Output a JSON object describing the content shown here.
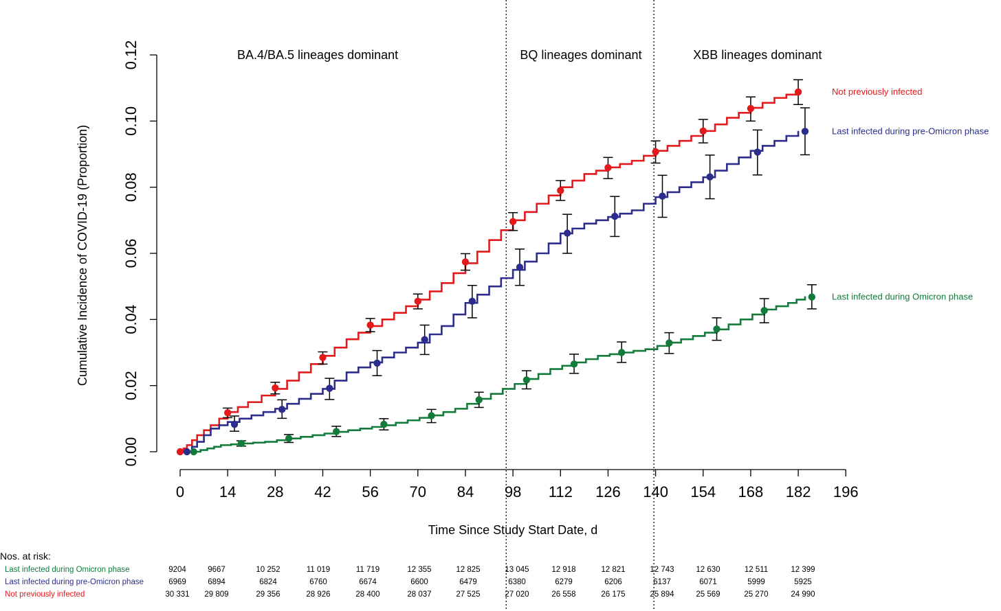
{
  "chart_data": {
    "type": "line",
    "ylabel": "Cumulative Incidence of COVID-19 (Proportion)",
    "xlabel": "Time Since Study Start Date, d",
    "xlim": [
      0,
      196
    ],
    "ylim": [
      0,
      0.12
    ],
    "x_ticks": [
      0,
      14,
      28,
      42,
      56,
      70,
      84,
      98,
      112,
      126,
      140,
      154,
      168,
      182,
      196
    ],
    "y_ticks": [
      "0.00",
      "0.02",
      "0.04",
      "0.06",
      "0.08",
      "0.10",
      "0.12"
    ],
    "phase_boundaries": [
      96,
      139.5
    ],
    "phases": [
      {
        "label": "BA.4/BA.5 lineages dominant",
        "x_center": 40.5
      },
      {
        "label": "BQ lineages dominant",
        "x_center": 118
      },
      {
        "label": "XBB lineages dominant",
        "x_center": 170
      }
    ],
    "series": [
      {
        "name": "Not previously infected",
        "color": "#e31a1c",
        "curve": [
          [
            0,
            0
          ],
          [
            2,
            0.002
          ],
          [
            5,
            0.005
          ],
          [
            9,
            0.008
          ],
          [
            14,
            0.012
          ],
          [
            20,
            0.015
          ],
          [
            28,
            0.019
          ],
          [
            35,
            0.024
          ],
          [
            42,
            0.029
          ],
          [
            49,
            0.034
          ],
          [
            56,
            0.038
          ],
          [
            63,
            0.042
          ],
          [
            70,
            0.046
          ],
          [
            77,
            0.051
          ],
          [
            84,
            0.057
          ],
          [
            91,
            0.064
          ],
          [
            98,
            0.07
          ],
          [
            105,
            0.075
          ],
          [
            112,
            0.08
          ],
          [
            119,
            0.084
          ],
          [
            126,
            0.086
          ],
          [
            133,
            0.088
          ],
          [
            140,
            0.091
          ],
          [
            147,
            0.094
          ],
          [
            154,
            0.097
          ],
          [
            161,
            0.101
          ],
          [
            168,
            0.104
          ],
          [
            175,
            0.107
          ],
          [
            182,
            0.109
          ]
        ],
        "points": [
          {
            "x": 0,
            "y": 0,
            "lo": 0,
            "hi": 0
          },
          {
            "x": 14,
            "y": 0.0118,
            "lo": 0.0103,
            "hi": 0.0132
          },
          {
            "x": 28,
            "y": 0.0193,
            "lo": 0.0175,
            "hi": 0.021
          },
          {
            "x": 42,
            "y": 0.0285,
            "lo": 0.0265,
            "hi": 0.0302
          },
          {
            "x": 56,
            "y": 0.0383,
            "lo": 0.0363,
            "hi": 0.0403
          },
          {
            "x": 70,
            "y": 0.0455,
            "lo": 0.0432,
            "hi": 0.0477
          },
          {
            "x": 84,
            "y": 0.0574,
            "lo": 0.0549,
            "hi": 0.0599
          },
          {
            "x": 98,
            "y": 0.0696,
            "lo": 0.0669,
            "hi": 0.0723
          },
          {
            "x": 112,
            "y": 0.079,
            "lo": 0.076,
            "hi": 0.082
          },
          {
            "x": 126,
            "y": 0.0859,
            "lo": 0.0826,
            "hi": 0.089
          },
          {
            "x": 140,
            "y": 0.0907,
            "lo": 0.0873,
            "hi": 0.094
          },
          {
            "x": 154,
            "y": 0.097,
            "lo": 0.0934,
            "hi": 0.1005
          },
          {
            "x": 168,
            "y": 0.1038,
            "lo": 0.1,
            "hi": 0.1073
          },
          {
            "x": 182,
            "y": 0.1088,
            "lo": 0.105,
            "hi": 0.1125
          }
        ]
      },
      {
        "name": "Last infected during pre-Omicron phase",
        "color": "#2b2c8c",
        "curve": [
          [
            2,
            0
          ],
          [
            5,
            0.003
          ],
          [
            9,
            0.007
          ],
          [
            14,
            0.009
          ],
          [
            21,
            0.011
          ],
          [
            28,
            0.013
          ],
          [
            35,
            0.016
          ],
          [
            42,
            0.019
          ],
          [
            49,
            0.024
          ],
          [
            56,
            0.027
          ],
          [
            63,
            0.03
          ],
          [
            70,
            0.033
          ],
          [
            77,
            0.038
          ],
          [
            84,
            0.045
          ],
          [
            91,
            0.05
          ],
          [
            98,
            0.055
          ],
          [
            105,
            0.06
          ],
          [
            112,
            0.066
          ],
          [
            119,
            0.069
          ],
          [
            126,
            0.071
          ],
          [
            133,
            0.073
          ],
          [
            140,
            0.077
          ],
          [
            147,
            0.08
          ],
          [
            154,
            0.083
          ],
          [
            161,
            0.087
          ],
          [
            168,
            0.091
          ],
          [
            175,
            0.094
          ],
          [
            182,
            0.097
          ]
        ],
        "points": [
          {
            "x": 2,
            "y": 0,
            "lo": 0,
            "hi": 0
          },
          {
            "x": 16,
            "y": 0.0083,
            "lo": 0.0062,
            "hi": 0.0108
          },
          {
            "x": 30,
            "y": 0.0128,
            "lo": 0.0101,
            "hi": 0.0157
          },
          {
            "x": 44,
            "y": 0.0192,
            "lo": 0.0158,
            "hi": 0.0222
          },
          {
            "x": 58,
            "y": 0.0268,
            "lo": 0.023,
            "hi": 0.0306
          },
          {
            "x": 72,
            "y": 0.0339,
            "lo": 0.0294,
            "hi": 0.0383
          },
          {
            "x": 86,
            "y": 0.0455,
            "lo": 0.0405,
            "hi": 0.0503
          },
          {
            "x": 100,
            "y": 0.0558,
            "lo": 0.0503,
            "hi": 0.0613
          },
          {
            "x": 114,
            "y": 0.0661,
            "lo": 0.06,
            "hi": 0.0718
          },
          {
            "x": 128,
            "y": 0.0712,
            "lo": 0.0651,
            "hi": 0.0772
          },
          {
            "x": 142,
            "y": 0.0773,
            "lo": 0.0709,
            "hi": 0.0836
          },
          {
            "x": 156,
            "y": 0.0831,
            "lo": 0.0765,
            "hi": 0.0897
          },
          {
            "x": 170,
            "y": 0.0906,
            "lo": 0.0837,
            "hi": 0.0973
          },
          {
            "x": 184,
            "y": 0.0969,
            "lo": 0.0898,
            "hi": 0.104
          }
        ]
      },
      {
        "name": "Last infected during Omicron phase",
        "color": "#127a3a",
        "curve": [
          [
            4,
            0
          ],
          [
            8,
            0.001
          ],
          [
            12,
            0.002
          ],
          [
            18,
            0.0025
          ],
          [
            25,
            0.003
          ],
          [
            32,
            0.004
          ],
          [
            39,
            0.005
          ],
          [
            46,
            0.006
          ],
          [
            53,
            0.007
          ],
          [
            60,
            0.008
          ],
          [
            67,
            0.0095
          ],
          [
            74,
            0.011
          ],
          [
            81,
            0.013
          ],
          [
            88,
            0.016
          ],
          [
            95,
            0.019
          ],
          [
            102,
            0.022
          ],
          [
            109,
            0.025
          ],
          [
            116,
            0.027
          ],
          [
            123,
            0.029
          ],
          [
            130,
            0.03
          ],
          [
            137,
            0.031
          ],
          [
            144,
            0.033
          ],
          [
            151,
            0.035
          ],
          [
            158,
            0.037
          ],
          [
            165,
            0.04
          ],
          [
            172,
            0.043
          ],
          [
            179,
            0.045
          ],
          [
            184,
            0.047
          ]
        ],
        "points": [
          {
            "x": 4,
            "y": 0,
            "lo": 0,
            "hi": 0
          },
          {
            "x": 18,
            "y": 0.0025,
            "lo": 0.0017,
            "hi": 0.0033
          },
          {
            "x": 32,
            "y": 0.004,
            "lo": 0.0028,
            "hi": 0.0052
          },
          {
            "x": 46,
            "y": 0.0061,
            "lo": 0.0046,
            "hi": 0.0077
          },
          {
            "x": 60,
            "y": 0.0083,
            "lo": 0.0066,
            "hi": 0.01
          },
          {
            "x": 74,
            "y": 0.0109,
            "lo": 0.0088,
            "hi": 0.0128
          },
          {
            "x": 88,
            "y": 0.0157,
            "lo": 0.0134,
            "hi": 0.018
          },
          {
            "x": 102,
            "y": 0.0217,
            "lo": 0.019,
            "hi": 0.0245
          },
          {
            "x": 116,
            "y": 0.0265,
            "lo": 0.0237,
            "hi": 0.0295
          },
          {
            "x": 130,
            "y": 0.03,
            "lo": 0.027,
            "hi": 0.0332
          },
          {
            "x": 144,
            "y": 0.0329,
            "lo": 0.0297,
            "hi": 0.036
          },
          {
            "x": 158,
            "y": 0.0371,
            "lo": 0.0337,
            "hi": 0.0405
          },
          {
            "x": 172,
            "y": 0.0427,
            "lo": 0.039,
            "hi": 0.0463
          },
          {
            "x": 186,
            "y": 0.0468,
            "lo": 0.0432,
            "hi": 0.0505
          }
        ]
      }
    ]
  },
  "risk_table": {
    "title": "Nos. at risk:",
    "rows": [
      {
        "label": "Last infected during Omicron phase",
        "color": "#127a3a",
        "values": [
          "9204",
          "9667",
          "10 252",
          "11 019",
          "11 719",
          "12 355",
          "12 825",
          "13 045",
          "12 918",
          "12 821",
          "12 743",
          "12 630",
          "12 511",
          "12 399"
        ]
      },
      {
        "label": "Last infected during pre-Omicron phase",
        "color": "#2b2c8c",
        "values": [
          "6969",
          "6894",
          "6824",
          "6760",
          "6674",
          "6600",
          "6479",
          "6380",
          "6279",
          "6206",
          "6137",
          "6071",
          "5999",
          "5925"
        ]
      },
      {
        "label": "Not previously infected",
        "color": "#e31a1c",
        "values": [
          "30 331",
          "29 809",
          "29 356",
          "28 926",
          "28 400",
          "28 037",
          "27 525",
          "27 020",
          "26 558",
          "26 175",
          "25 894",
          "25 569",
          "25 270",
          "24 990"
        ]
      }
    ]
  }
}
